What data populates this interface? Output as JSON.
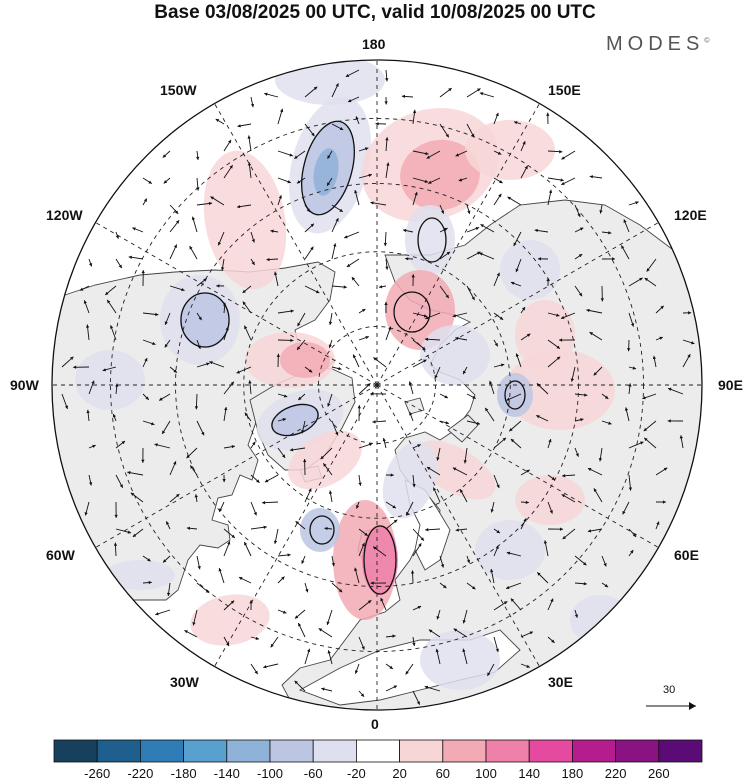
{
  "title": "Base 03/08/2025 00 UTC, valid 10/08/2025 00 UTC",
  "brand": "MODES",
  "brand_mark": "©",
  "map": {
    "projection": "north-polar-stereographic",
    "longitude_labels": [
      {
        "name": "lon-label-180",
        "text": "180",
        "lon": 180
      },
      {
        "name": "lon-label-150e",
        "text": "150E",
        "lon": 150
      },
      {
        "name": "lon-label-120e",
        "text": "120E",
        "lon": 120
      },
      {
        "name": "lon-label-90e",
        "text": "90E",
        "lon": 90
      },
      {
        "name": "lon-label-60e",
        "text": "60E",
        "lon": 60
      },
      {
        "name": "lon-label-30e",
        "text": "30E",
        "lon": 30
      },
      {
        "name": "lon-label-0",
        "text": "0",
        "lon": 0
      },
      {
        "name": "lon-label-30w",
        "text": "30W",
        "lon": -30
      },
      {
        "name": "lon-label-60w",
        "text": "60W",
        "lon": -60
      },
      {
        "name": "lon-label-90w",
        "text": "90W",
        "lon": -90
      },
      {
        "name": "lon-label-120w",
        "text": "120W",
        "lon": -120
      },
      {
        "name": "lon-label-150w",
        "text": "150W",
        "lon": -150
      }
    ],
    "land_color": "#ececec",
    "ocean_color": "#ffffff",
    "reference_vector_label": "30"
  },
  "colorbar": {
    "colors": [
      "#17405c",
      "#1f5f8d",
      "#2f7db7",
      "#58a0cf",
      "#8fb2d9",
      "#bcc6e3",
      "#dfe0ef",
      "#ffffff",
      "#f8d6d7",
      "#f3aab4",
      "#ef80aa",
      "#e54aa0",
      "#b51d8f",
      "#891383",
      "#5b0b75"
    ],
    "ticks": [
      "-260",
      "-220",
      "-180",
      "-140",
      "-100",
      "-60",
      "-20",
      "20",
      "60",
      "100",
      "140",
      "180",
      "220",
      "260"
    ]
  }
}
